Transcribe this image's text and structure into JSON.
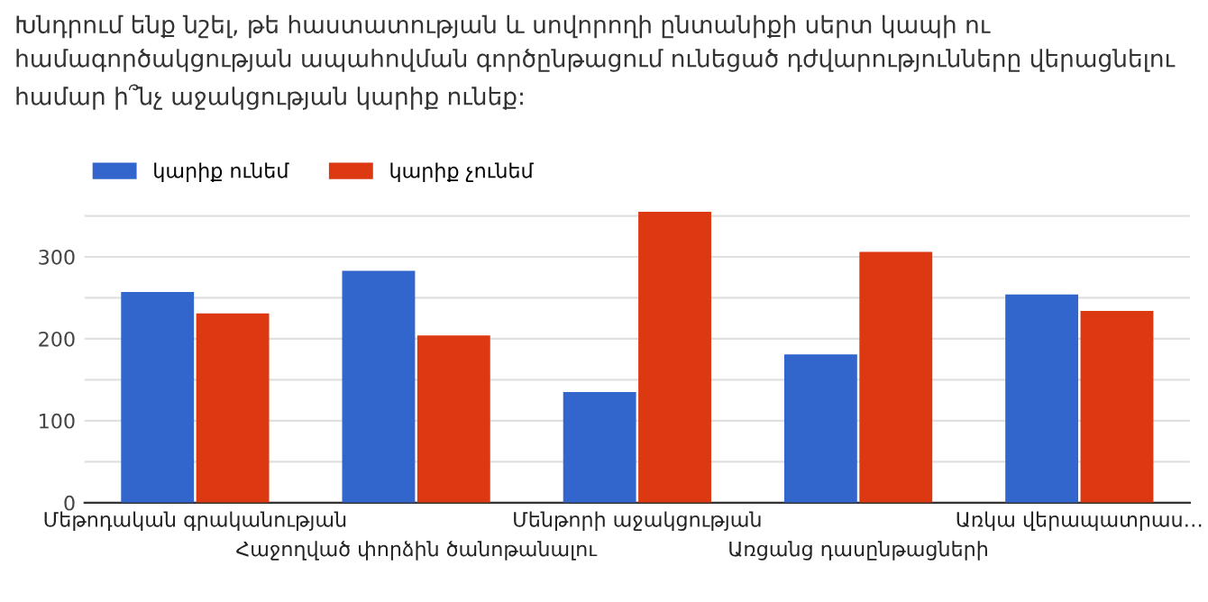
{
  "chart_data": {
    "type": "bar",
    "title": "Խնդրում ենք նշել, թե հաստատության և սովորողի ընտանիքի սերտ կապի ու համագործակցության ապահովման գործընթացում ունեցած դժվարությունները վերացնելու համար ի՞նչ աջակցության կարիք ունեք:",
    "categories": [
      "Մեթոդական գրականության",
      "Հաջողված փորձին ծանոթանալու",
      "Մենթորի աջակցության",
      "Առցանց դասընթացների",
      "Առկա վերապատրաս…"
    ],
    "series": [
      {
        "name": "կարիք ունեմ",
        "color": "#3366cc",
        "values": [
          257,
          283,
          135,
          181,
          254
        ]
      },
      {
        "name": "կարիք չունեմ",
        "color": "#dc3912",
        "values": [
          231,
          204,
          355,
          306,
          234
        ]
      }
    ],
    "ylim": [
      0,
      360
    ],
    "yticks": [
      0,
      {
        "value": 50,
        "label": null
      },
      100,
      {
        "value": 150,
        "label": null
      },
      200,
      {
        "value": 250,
        "label": null
      },
      300,
      {
        "value": 350,
        "label": null
      }
    ],
    "grid": "y",
    "legend": "top left"
  }
}
